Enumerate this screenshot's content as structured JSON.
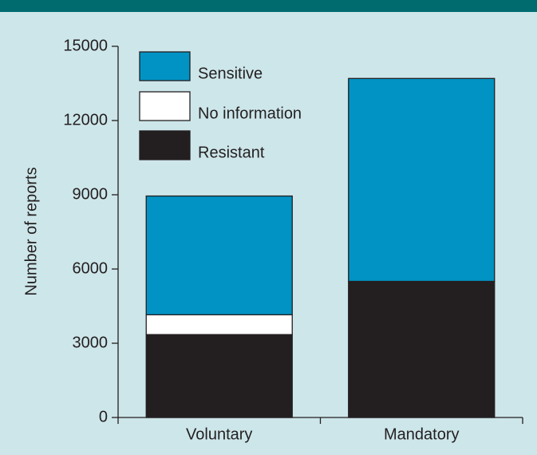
{
  "chart_data": {
    "type": "stacked-bar",
    "categories": [
      "Voluntary",
      "Mandatory"
    ],
    "series": [
      {
        "name": "Resistant",
        "color": "#231f20",
        "values": [
          3350,
          5500
        ]
      },
      {
        "name": "No information",
        "color": "#ffffff",
        "values": [
          800,
          0
        ]
      },
      {
        "name": "Sensitive",
        "color": "#0093c4",
        "values": [
          4800,
          8200
        ]
      }
    ],
    "ylabel": "Number of reports",
    "ylim": [
      0,
      15000
    ],
    "yticks": [
      0,
      3000,
      6000,
      9000,
      12000,
      15000
    ]
  }
}
